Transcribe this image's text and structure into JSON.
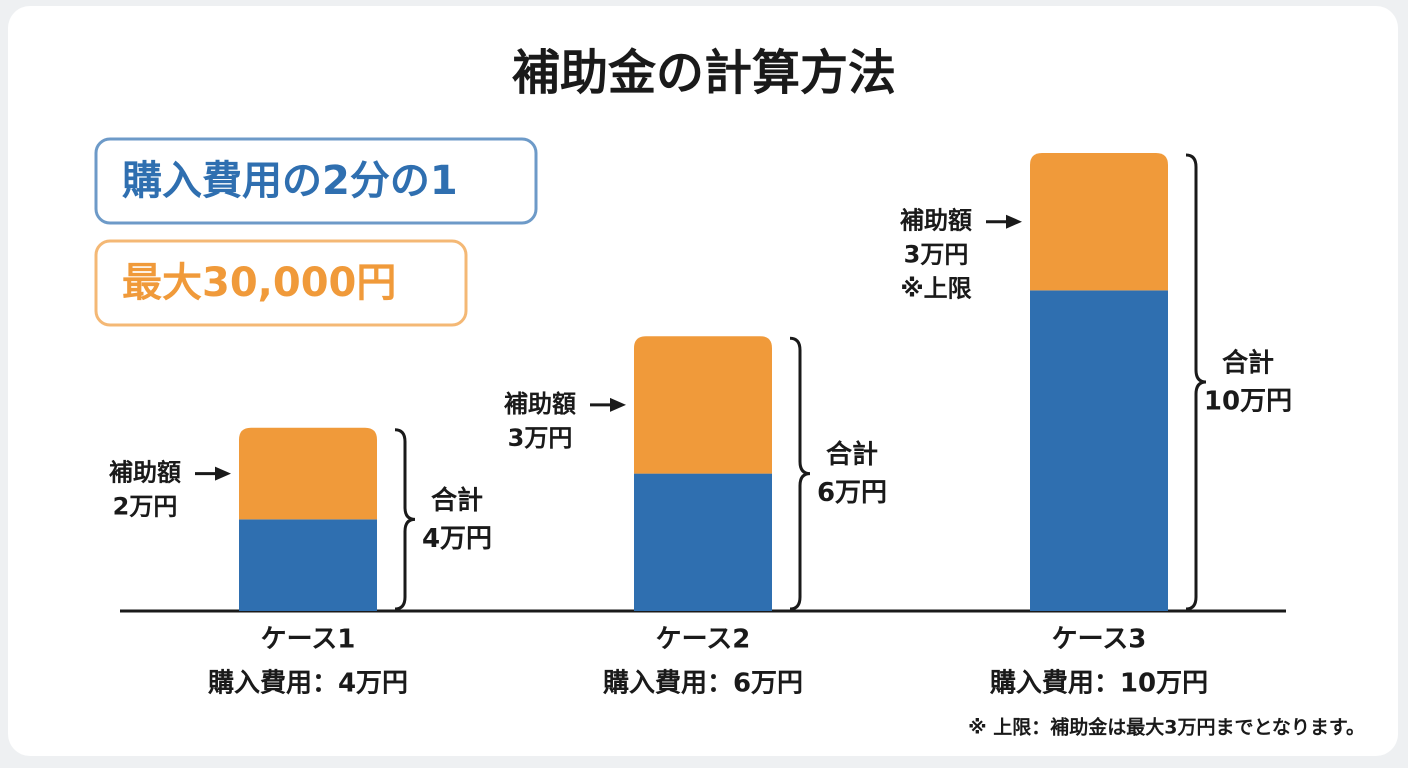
{
  "chart_data": {
    "type": "stacked_bar",
    "title": "補助金の計算方法",
    "rules": [
      {
        "text": "購入費用の2分の1",
        "color": "#2f6fb0"
      },
      {
        "text": "最大30,000円",
        "color": "#f09a3a"
      }
    ],
    "categories": [
      "ケース1",
      "ケース2",
      "ケース3"
    ],
    "category_notes": [
      "購入費用：4万円",
      "購入費用：6万円",
      "購入費用：10万円"
    ],
    "series": [
      {
        "color": "#2f6fb0",
        "values": [
          2,
          3,
          7
        ]
      },
      {
        "color": "#f09a3a",
        "values": [
          2,
          3,
          3
        ],
        "label": "補助額",
        "value_labels": [
          "2万円",
          "3万円",
          "3万円"
        ],
        "notes": [
          null,
          null,
          "※上限"
        ]
      }
    ],
    "total_label": "合計",
    "total_labels": [
      "4万円",
      "6万円",
      "10万円"
    ],
    "footnote": "※ 上限：補助金は最大3万円までとなります。"
  }
}
